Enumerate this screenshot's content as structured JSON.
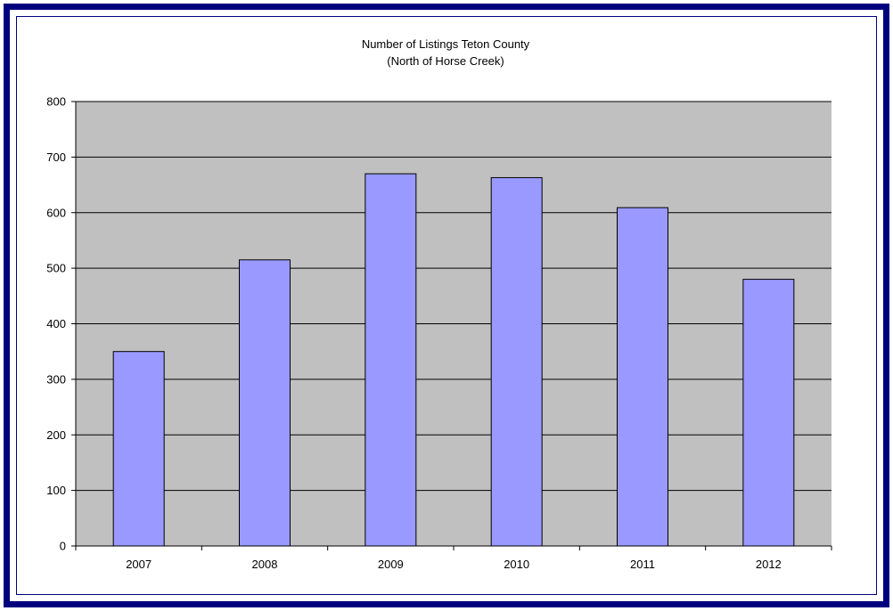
{
  "chart_data": {
    "type": "bar",
    "title": "Number of Listings Teton County",
    "subtitle": "(North of Horse Creek)",
    "categories": [
      "2007",
      "2008",
      "2009",
      "2010",
      "2011",
      "2012"
    ],
    "values": [
      350,
      515,
      670,
      663,
      609,
      480
    ],
    "ylim": [
      0,
      800
    ],
    "yticks": [
      0,
      100,
      200,
      300,
      400,
      500,
      600,
      700,
      800
    ],
    "grid": true,
    "legend": "none",
    "colors": {
      "bar": "#9999ff",
      "plot_background": "#c0c0c0",
      "frame": "#00007f"
    }
  }
}
